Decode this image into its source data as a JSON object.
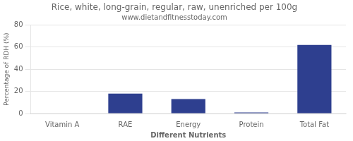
{
  "chart_data": {
    "type": "bar",
    "title": "Rice, white, long-grain, regular, raw, unenriched per 100g",
    "subtitle": "www.dietandfitnesstoday.com",
    "categories": [
      "Vitamin A",
      "RAE",
      "Energy",
      "Protein",
      "Total Fat"
    ],
    "values": [
      0,
      18,
      13,
      1,
      62
    ],
    "color": "#2e3f8f",
    "xlabel": "Different Nutrients",
    "ylabel": "Percentage of RDH (%)",
    "ylim": [
      0,
      80
    ],
    "yticks": [
      0,
      20,
      40,
      60,
      80
    ],
    "grid": true
  }
}
